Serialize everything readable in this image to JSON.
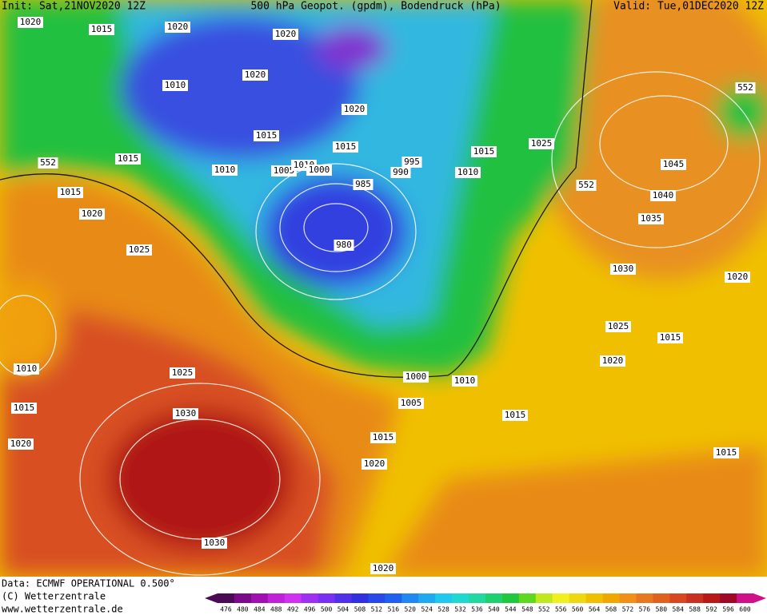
{
  "header": {
    "init": "Init: Sat,21NOV2020 12Z",
    "title": "500 hPa Geopot. (gpdm), Bodendruck (hPa)",
    "valid": "Valid: Tue,01DEC2020 12Z"
  },
  "isobar_labels": [
    "1020",
    "1015",
    "1020",
    "1020",
    "1020",
    "1010",
    "552",
    "1020",
    "1015",
    "1015",
    "1015",
    "1010",
    "1005",
    "1010",
    "1000",
    "995",
    "990",
    "1015",
    "1025",
    "1045",
    "1010",
    "552",
    "552",
    "985",
    "1015",
    "1040",
    "1020",
    "1035",
    "980",
    "1025",
    "1030",
    "1020",
    "1025",
    "1015",
    "1020",
    "1010",
    "1025",
    "1000",
    "1010",
    "1005",
    "1015",
    "1030",
    "1015",
    "1015",
    "1020",
    "1015",
    "1020",
    "1030",
    "1020"
  ],
  "footer": {
    "data": "Data: ECMWF OPERATIONAL 0.500°",
    "copyright": "(C) Wetterzentrale",
    "url": "www.wetterzentrale.de"
  },
  "colorbar": {
    "ticks": [
      476,
      480,
      484,
      488,
      492,
      496,
      500,
      504,
      508,
      512,
      516,
      520,
      524,
      528,
      532,
      536,
      540,
      544,
      548,
      552,
      556,
      560,
      564,
      568,
      572,
      576,
      580,
      584,
      588,
      592,
      596,
      600
    ],
    "colors": [
      "#4a0a55",
      "#7a0a8a",
      "#a010b0",
      "#c020d8",
      "#d030f0",
      "#a030f0",
      "#7a30f0",
      "#5030e8",
      "#3030e0",
      "#2848e8",
      "#2060f0",
      "#2088f0",
      "#20a8f0",
      "#20c8f0",
      "#20d8d0",
      "#20d8a0",
      "#20d070",
      "#20c840",
      "#60d820",
      "#c0e820",
      "#f0f020",
      "#f0d810",
      "#f0c000",
      "#f0a800",
      "#f09018",
      "#e87820",
      "#e06020",
      "#d84820",
      "#c83020",
      "#b81818",
      "#a00828",
      "#d0108a"
    ]
  }
}
